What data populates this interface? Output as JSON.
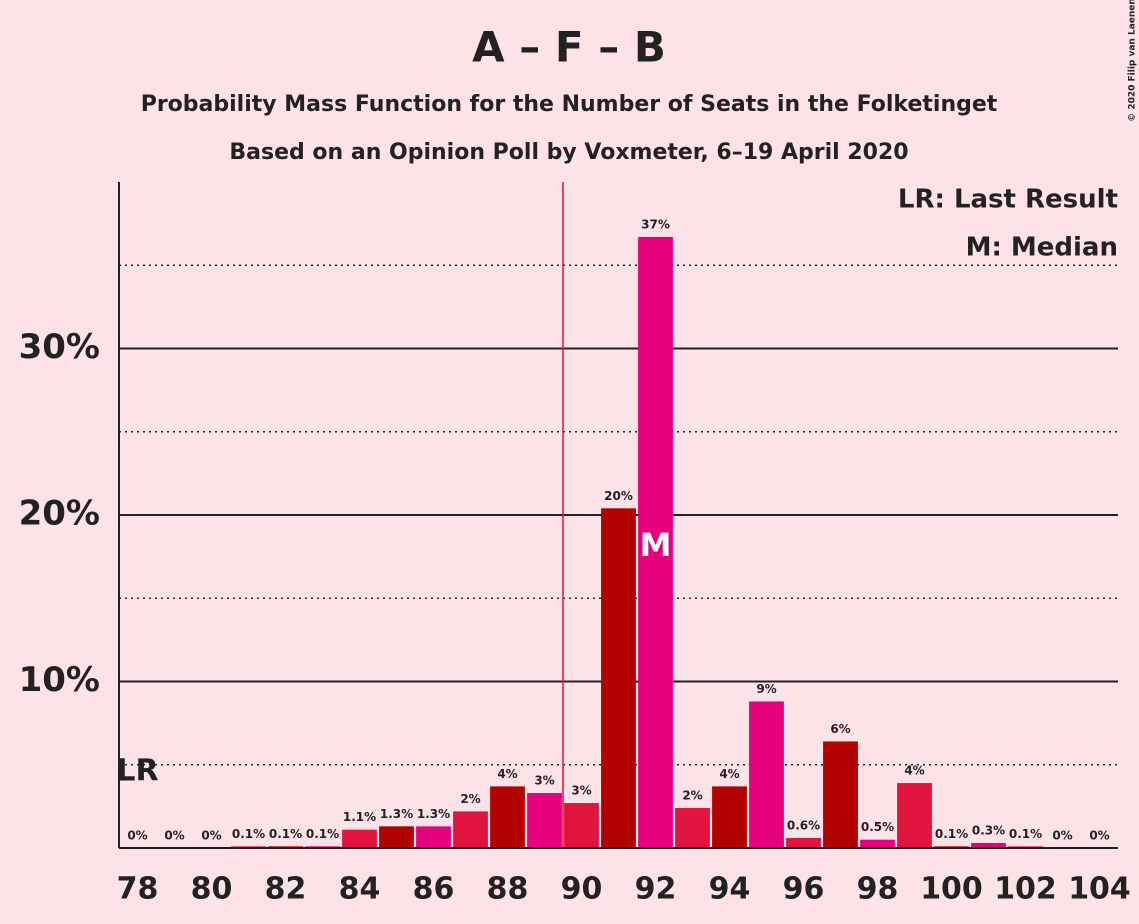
{
  "chart_data": {
    "type": "bar",
    "title": "A – F – B",
    "subtitles": [
      "Probability Mass Function for the Number of Seats in the Folketinget",
      "Based on an Opinion Poll by Voxmeter, 6–19 April 2020"
    ],
    "credit": "© 2020 Filip van Laenen",
    "x": [
      78,
      79,
      80,
      81,
      82,
      83,
      84,
      85,
      86,
      87,
      88,
      89,
      90,
      91,
      92,
      93,
      94,
      95,
      96,
      97,
      98,
      99,
      100,
      101,
      102,
      103,
      104
    ],
    "values": [
      0,
      0,
      0,
      0.1,
      0.1,
      0.1,
      1.1,
      1.3,
      1.3,
      2.2,
      3.7,
      3.3,
      2.7,
      20.4,
      36.7,
      2.4,
      3.7,
      8.8,
      0.6,
      6.4,
      0.5,
      3.9,
      0.1,
      0.3,
      0.1,
      0,
      0
    ],
    "value_labels": [
      "0%",
      "0%",
      "0%",
      "0.1%",
      "0.1%",
      "0.1%",
      "1.1%",
      "1.3%",
      "1.3%",
      "2%",
      "4%",
      "3%",
      "3%",
      "20%",
      "37%",
      "2%",
      "4%",
      "9%",
      "0.6%",
      "6%",
      "0.5%",
      "4%",
      "0.1%",
      "0.3%",
      "0.1%",
      "0%",
      "0%"
    ],
    "color_cycle": [
      "#e0143c",
      "#b30000",
      "#e6007e"
    ],
    "xlim": [
      77.5,
      104.5
    ],
    "xticks": [
      78,
      80,
      82,
      84,
      86,
      88,
      90,
      92,
      94,
      96,
      98,
      100,
      102,
      104
    ],
    "ylim": [
      0,
      40
    ],
    "yticks": [
      {
        "value": 10,
        "label": "10%"
      },
      {
        "value": 20,
        "label": "20%"
      },
      {
        "value": 30,
        "label": "30%"
      }
    ],
    "minor_yticks": [
      5,
      15,
      25,
      35
    ],
    "grid": true,
    "majority_line": {
      "x": 89.5,
      "color": "#e0143c"
    },
    "median": {
      "x": 92,
      "label": "M"
    },
    "last_result": {
      "x": 78,
      "label": "LR"
    },
    "legend": [
      "LR: Last Result",
      "M: Median"
    ],
    "legend_position": "top-right"
  }
}
